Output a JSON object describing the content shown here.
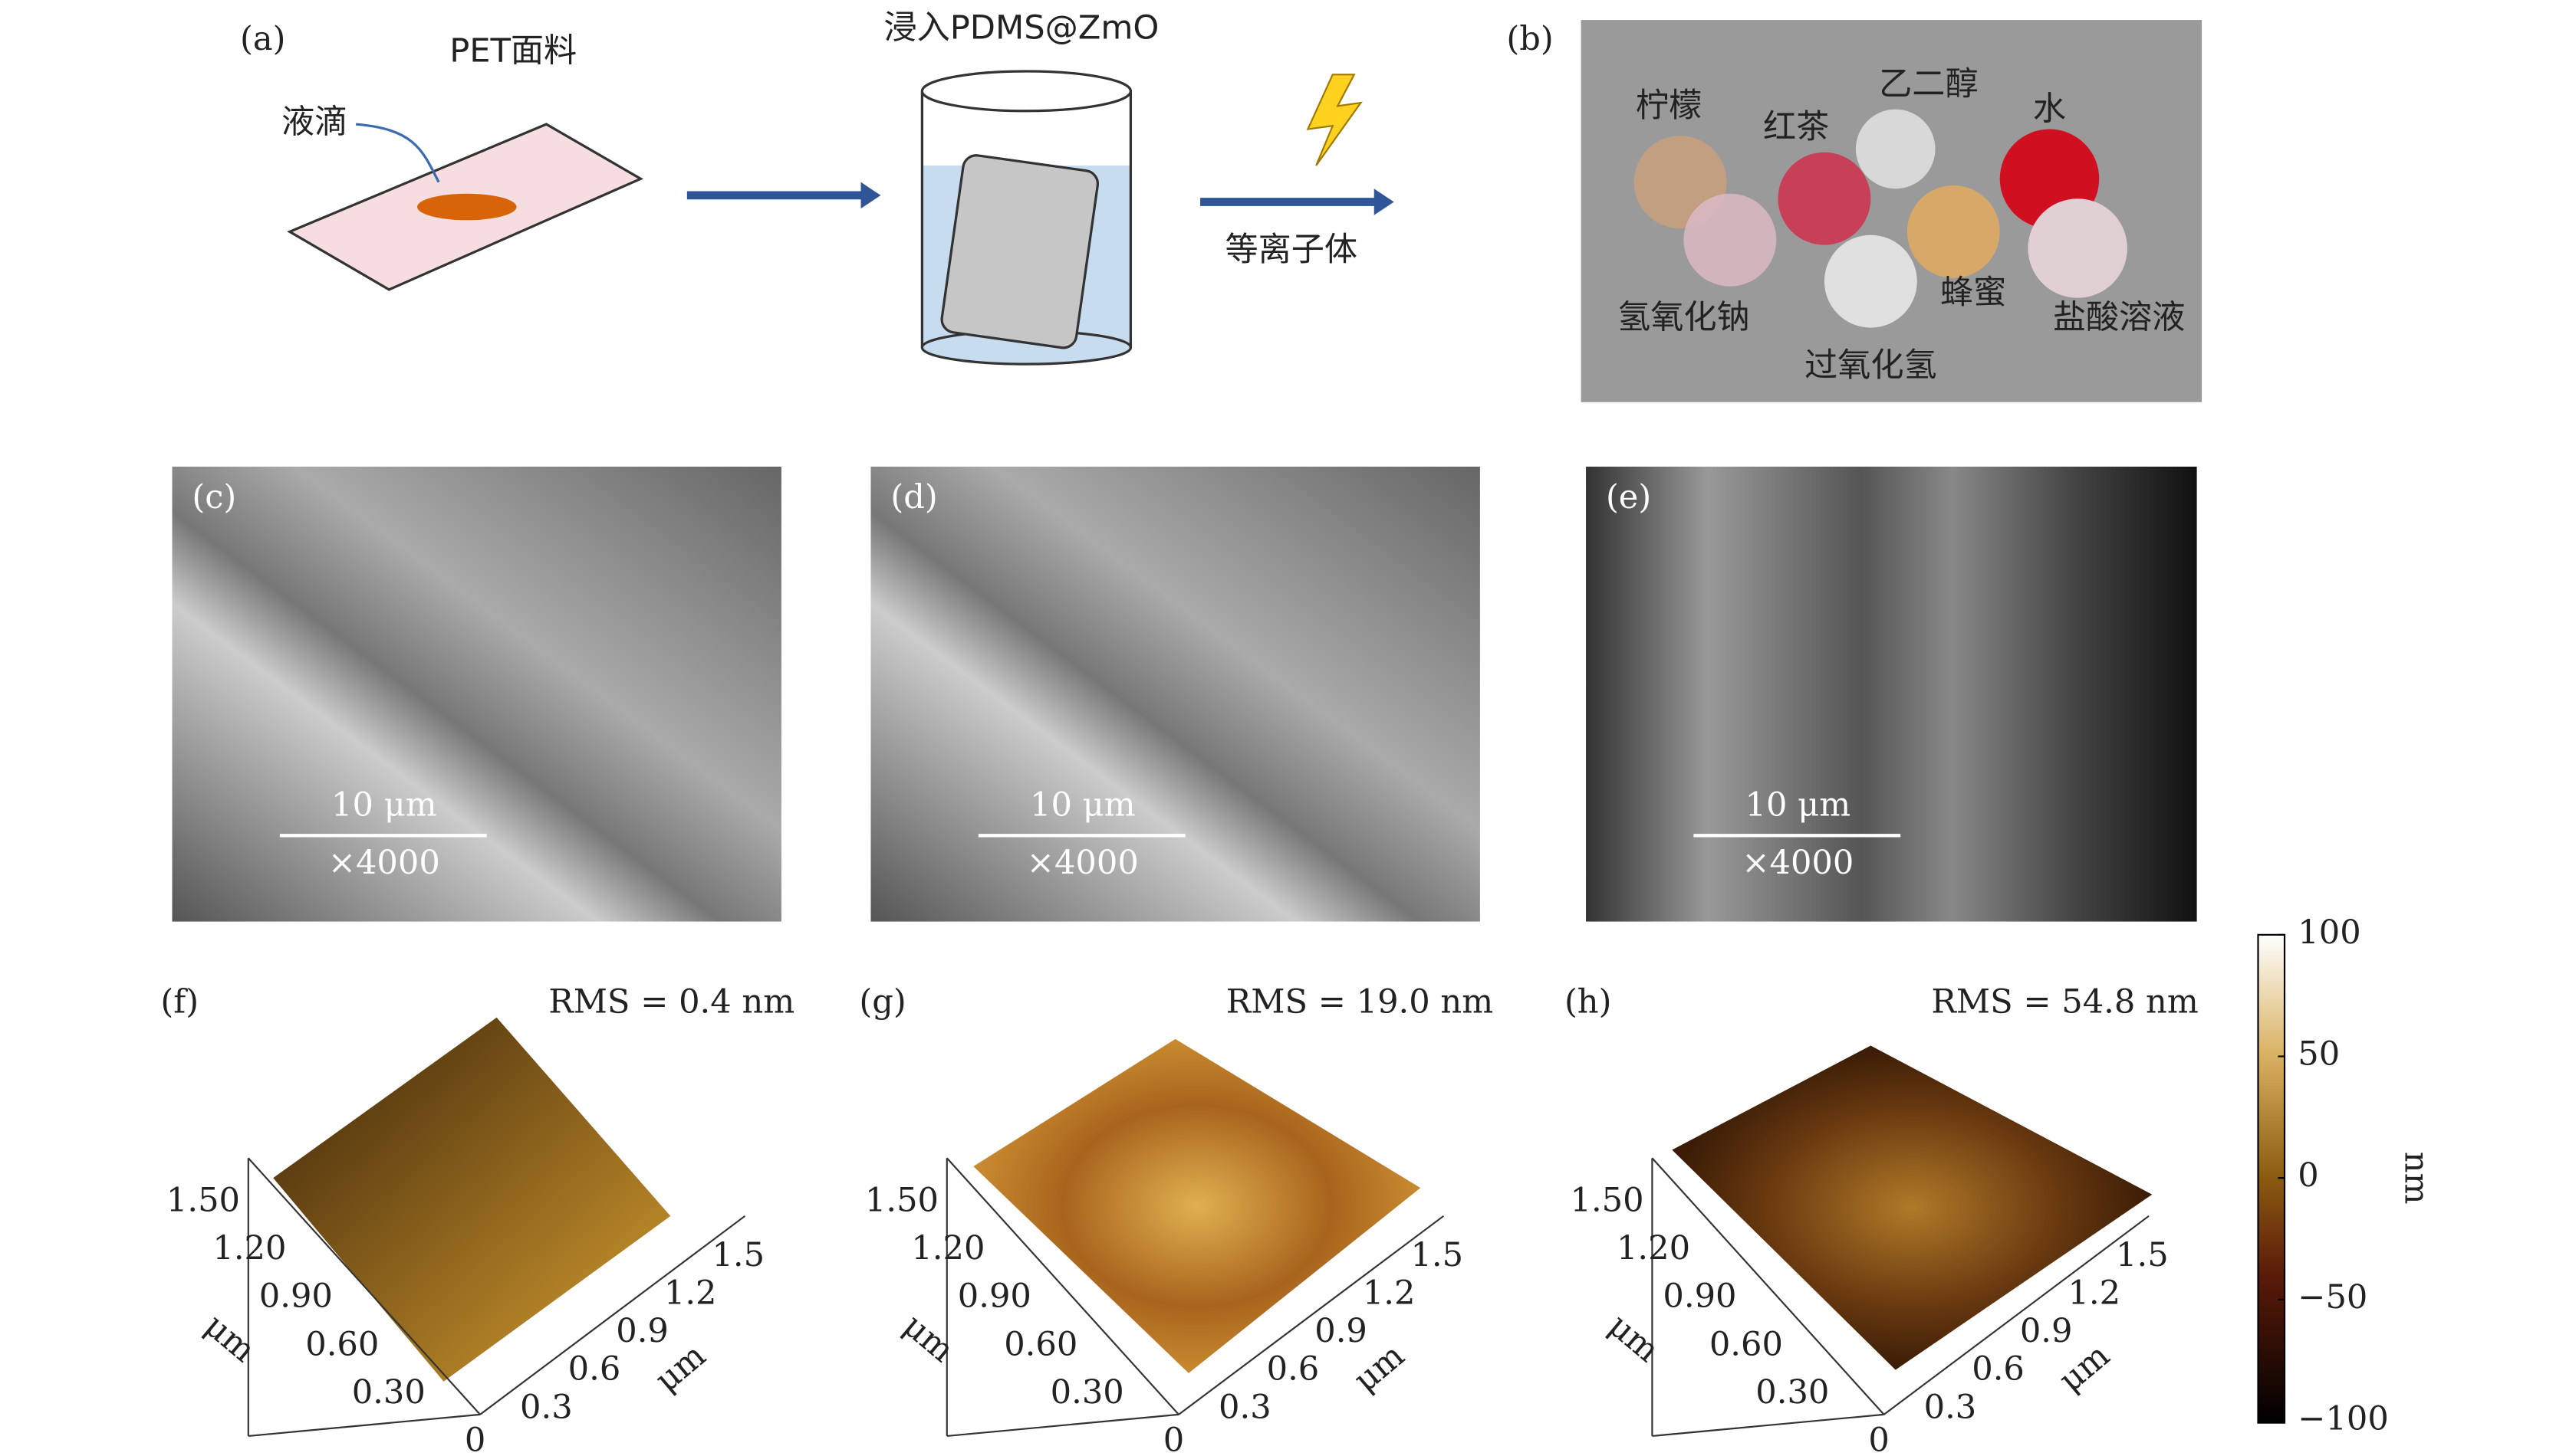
{
  "panel_a": {
    "label": "(a)",
    "fabric": "PET面料",
    "droplet": "液滴",
    "step_immerse": "浸入PDMS@ZmO",
    "step_plasma": "等离子体"
  },
  "panel_b": {
    "label": "(b)",
    "liquids": [
      "柠檬",
      "红茶",
      "乙二醇",
      "水",
      "氢氧化钠",
      "过氧化氢",
      "蜂蜜",
      "盐酸溶液"
    ]
  },
  "sem": [
    {
      "label": "(c)",
      "scale": "10 μm",
      "magnification": "×4000"
    },
    {
      "label": "(d)",
      "scale": "10 μm",
      "magnification": "×4000"
    },
    {
      "label": "(e)",
      "scale": "10 μm",
      "magnification": "×4000"
    }
  ],
  "afm": [
    {
      "label": "(f)",
      "rms": "RMS = 0.4 nm",
      "y_ticks": [
        "1.50",
        "1.20",
        "0.90",
        "0.60",
        "0.30"
      ],
      "origin": "0",
      "x_ticks": [
        "0.3",
        "0.6",
        "0.9",
        "1.2",
        "1.5"
      ],
      "y_unit": "μm",
      "x_unit": "μm"
    },
    {
      "label": "(g)",
      "rms": "RMS = 19.0 nm",
      "y_ticks": [
        "1.50",
        "1.20",
        "0.90",
        "0.60",
        "0.30"
      ],
      "origin": "0",
      "x_ticks": [
        "0.3",
        "0.6",
        "0.9",
        "1.2",
        "1.5"
      ],
      "y_unit": "μm",
      "x_unit": "μm"
    },
    {
      "label": "(h)",
      "rms": "RMS = 54.8 nm",
      "y_ticks": [
        "1.50",
        "1.20",
        "0.90",
        "0.60",
        "0.30"
      ],
      "origin": "0",
      "x_ticks": [
        "0.3",
        "0.6",
        "0.9",
        "1.2",
        "1.5"
      ],
      "y_unit": "μm",
      "x_unit": "μm"
    }
  ],
  "colorbar": {
    "ticks": [
      "100",
      "50",
      "0",
      "−50",
      "−100"
    ],
    "unit": "nm"
  }
}
